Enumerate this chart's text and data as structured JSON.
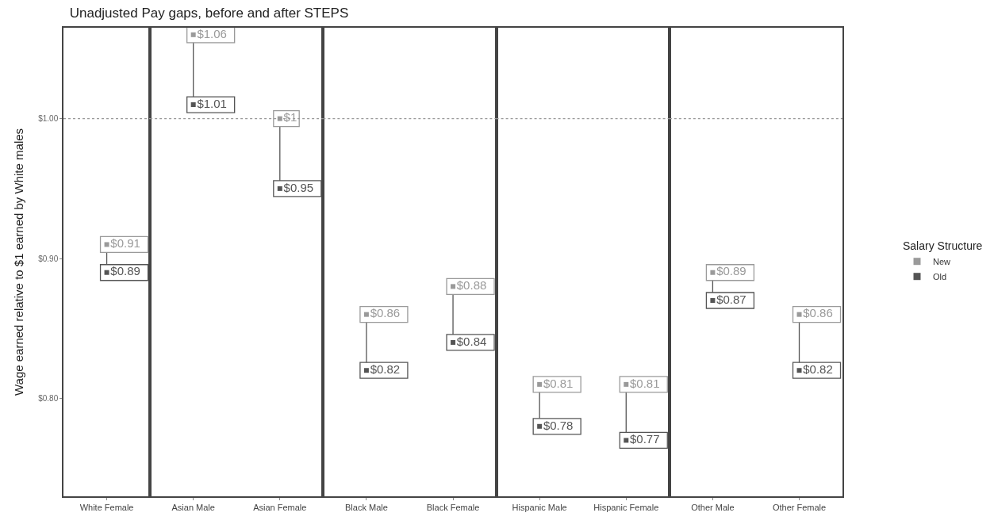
{
  "chart_data": [
    {
      "type": "scatter",
      "title": "Unadjusted Pay gaps, before and after STEPS",
      "ylabel": "Wage earned relative to $1 earned by White males",
      "categories": [
        "White Female"
      ],
      "ylim": [
        0.73,
        1.065
      ],
      "yticks": [
        {
          "value": 0.8,
          "label": "$0.80"
        },
        {
          "value": 0.9,
          "label": "$0.90"
        },
        {
          "value": 1.0,
          "label": "$1.00"
        }
      ],
      "marker": "square",
      "ref_lines": [
        {
          "axis": "y",
          "value": 1.0,
          "line_style": "dotted",
          "color": "#999999"
        }
      ],
      "series": [
        {
          "color": "#9a9a9a",
          "values": [
            0.91
          ],
          "value_labels": [
            "$0.91"
          ]
        },
        {
          "color": "#555555",
          "values": [
            0.89
          ],
          "value_labels": [
            "$0.89"
          ]
        }
      ]
    },
    {
      "type": "scatter",
      "categories": [
        "Asian Male",
        "Asian Female"
      ],
      "ylim": [
        0.73,
        1.065
      ],
      "tick_labels": "x",
      "marker": "square",
      "ref_lines": [
        {
          "axis": "y",
          "value": 1.0,
          "line_style": "dotted",
          "color": "#999999"
        }
      ],
      "series": [
        {
          "color": "#9a9a9a",
          "values": [
            1.06,
            1.0
          ],
          "value_labels": [
            "$1.06",
            "$1"
          ]
        },
        {
          "color": "#555555",
          "values": [
            1.01,
            0.95
          ],
          "value_labels": [
            "$1.01",
            "$0.95"
          ]
        }
      ]
    },
    {
      "type": "scatter",
      "categories": [
        "Black Male",
        "Black Female"
      ],
      "ylim": [
        0.73,
        1.065
      ],
      "tick_labels": "x",
      "marker": "square",
      "ref_lines": [
        {
          "axis": "y",
          "value": 1.0,
          "line_style": "dotted",
          "color": "#999999"
        }
      ],
      "series": [
        {
          "color": "#9a9a9a",
          "values": [
            0.86,
            0.88
          ],
          "value_labels": [
            "$0.86",
            "$0.88"
          ]
        },
        {
          "color": "#555555",
          "values": [
            0.82,
            0.84
          ],
          "value_labels": [
            "$0.82",
            "$0.84"
          ]
        }
      ]
    },
    {
      "type": "scatter",
      "categories": [
        "Hispanic Male",
        "Hispanic Female"
      ],
      "ylim": [
        0.73,
        1.065
      ],
      "tick_labels": "x",
      "marker": "square",
      "ref_lines": [
        {
          "axis": "y",
          "value": 1.0,
          "line_style": "dotted",
          "color": "#999999"
        }
      ],
      "series": [
        {
          "color": "#9a9a9a",
          "values": [
            0.81,
            0.81
          ],
          "value_labels": [
            "$0.81",
            "$0.81"
          ]
        },
        {
          "color": "#555555",
          "values": [
            0.78,
            0.77
          ],
          "value_labels": [
            "$0.78",
            "$0.77"
          ]
        }
      ]
    },
    {
      "type": "scatter",
      "legend_title": "Salary Structure",
      "categories": [
        "Other Male",
        "Other Female"
      ],
      "ylim": [
        0.73,
        1.065
      ],
      "tick_labels": "x",
      "marker": "square",
      "legend": "right",
      "ref_lines": [
        {
          "axis": "y",
          "value": 1.0,
          "line_style": "dotted",
          "color": "#999999"
        }
      ],
      "series": [
        {
          "name": "New",
          "color": "#9a9a9a",
          "values": [
            0.89,
            0.86
          ],
          "value_labels": [
            "$0.89",
            "$0.86"
          ]
        },
        {
          "name": "Old",
          "color": "#555555",
          "values": [
            0.87,
            0.82
          ],
          "value_labels": [
            "$0.87",
            "$0.82"
          ]
        }
      ]
    }
  ]
}
